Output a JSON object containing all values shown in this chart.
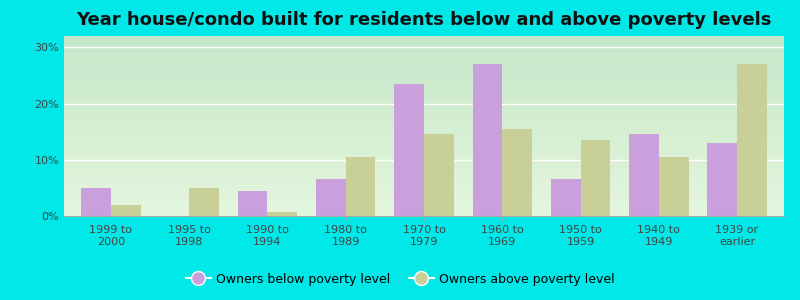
{
  "title": "Year house/condo built for residents below and above poverty levels",
  "categories": [
    "1999 to\n2000",
    "1995 to\n1998",
    "1990 to\n1994",
    "1980 to\n1989",
    "1970 to\n1979",
    "1960 to\n1969",
    "1950 to\n1959",
    "1940 to\n1949",
    "1939 or\nearlier"
  ],
  "below_poverty": [
    5.0,
    0.0,
    4.5,
    6.5,
    23.5,
    27.0,
    6.5,
    14.5,
    13.0
  ],
  "above_poverty": [
    2.0,
    5.0,
    0.8,
    10.5,
    14.5,
    15.5,
    13.5,
    10.5,
    27.0
  ],
  "below_color": "#c9a0dc",
  "above_color": "#c8d098",
  "bg_top_color": "#e0f0d8",
  "bg_bottom_color": "#f5fdf0",
  "outer_bg": "#00e8e8",
  "ylim": [
    0,
    32
  ],
  "yticks": [
    0,
    10,
    20,
    30
  ],
  "ytick_labels": [
    "0%",
    "10%",
    "20%",
    "30%"
  ],
  "legend_below": "Owners below poverty level",
  "legend_above": "Owners above poverty level",
  "title_fontsize": 13,
  "tick_fontsize": 8,
  "legend_fontsize": 9
}
